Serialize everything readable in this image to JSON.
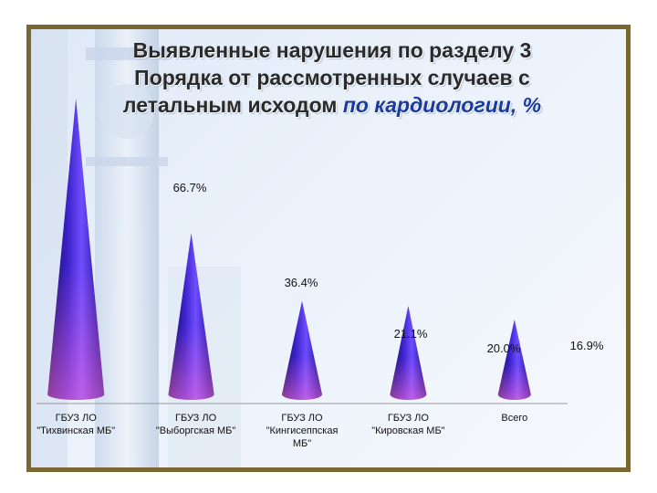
{
  "slide": {
    "title_line1": "Выявленные нарушения по разделу 3",
    "title_line2": "Порядка от  рассмотренных случаев с",
    "title_line3_a": "летальным исходом ",
    "title_line3_b": "по кардиологии, %"
  },
  "chart_data": {
    "type": "bar",
    "style": "cone",
    "categories": [
      [
        "ГБУЗ ЛО",
        "\"Тихвинская МБ\""
      ],
      [
        "ГБУЗ ЛО",
        "\"Выборгская МБ\""
      ],
      [
        "ГБУЗ ЛО",
        "\"Кингисеппская",
        "МБ\""
      ],
      [
        "ГБУЗ ЛО",
        "\"Кировская МБ\""
      ],
      [
        "Всего"
      ]
    ],
    "values": [
      66.7,
      36.4,
      21.1,
      20.0,
      16.9
    ],
    "value_labels": [
      "66.7%",
      "36.4%",
      "21.1%",
      "20.0%",
      "16.9%"
    ],
    "ylim": [
      0,
      70
    ],
    "grid": false,
    "colors": {
      "cone_dark": "#1a0f7a",
      "cone_mid": "#4a2ee0",
      "cone_light": "#9a7cff",
      "cone_pink": "#ff6fd8"
    }
  }
}
